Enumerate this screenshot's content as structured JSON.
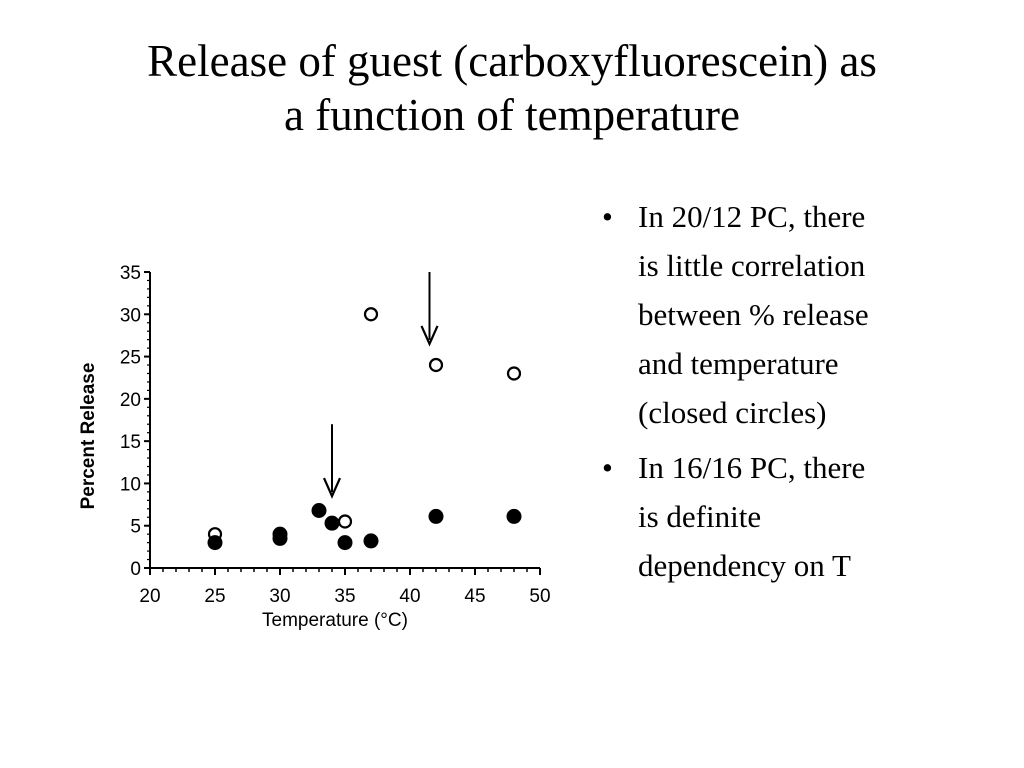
{
  "slide": {
    "title_lines": [
      "Release of guest (carboxyfluorescein) as",
      "a function of temperature"
    ],
    "bullets": [
      {
        "lines": [
          "In 20/12 PC, there",
          "is little correlation",
          "between % release",
          "and temperature",
          "(closed circles)"
        ]
      },
      {
        "lines": [
          "In 16/16 PC, there",
          "is definite",
          "dependency on T"
        ]
      }
    ],
    "bullet_glyph": "•"
  },
  "chart_data": {
    "type": "scatter",
    "xlabel": "Temperature (°C)",
    "ylabel": "Percent Release",
    "xlim": [
      20,
      50
    ],
    "ylim": [
      0,
      35
    ],
    "xticks": [
      20,
      25,
      30,
      35,
      40,
      45,
      50
    ],
    "yticks": [
      0,
      5,
      10,
      15,
      20,
      25,
      30,
      35
    ],
    "grid": false,
    "series": [
      {
        "marker": "open-circle",
        "color": "#000000",
        "points": [
          {
            "x": 25,
            "y": 4
          },
          {
            "x": 35,
            "y": 5.5
          },
          {
            "x": 37,
            "y": 30
          },
          {
            "x": 42,
            "y": 24
          },
          {
            "x": 48,
            "y": 23
          }
        ]
      },
      {
        "marker": "filled-circle",
        "color": "#000000",
        "points": [
          {
            "x": 25,
            "y": 3
          },
          {
            "x": 30,
            "y": 3.5
          },
          {
            "x": 30,
            "y": 4
          },
          {
            "x": 33,
            "y": 6.8
          },
          {
            "x": 34,
            "y": 5.3
          },
          {
            "x": 35,
            "y": 3
          },
          {
            "x": 37,
            "y": 3.2
          },
          {
            "x": 42,
            "y": 6.1
          },
          {
            "x": 48,
            "y": 6.1
          }
        ]
      }
    ],
    "annotations": [
      {
        "type": "arrow",
        "x": 34,
        "y_from": 17,
        "y_to": 8.5
      },
      {
        "type": "arrow",
        "x": 41.5,
        "y_from": 35,
        "y_to": 26.5
      }
    ]
  }
}
